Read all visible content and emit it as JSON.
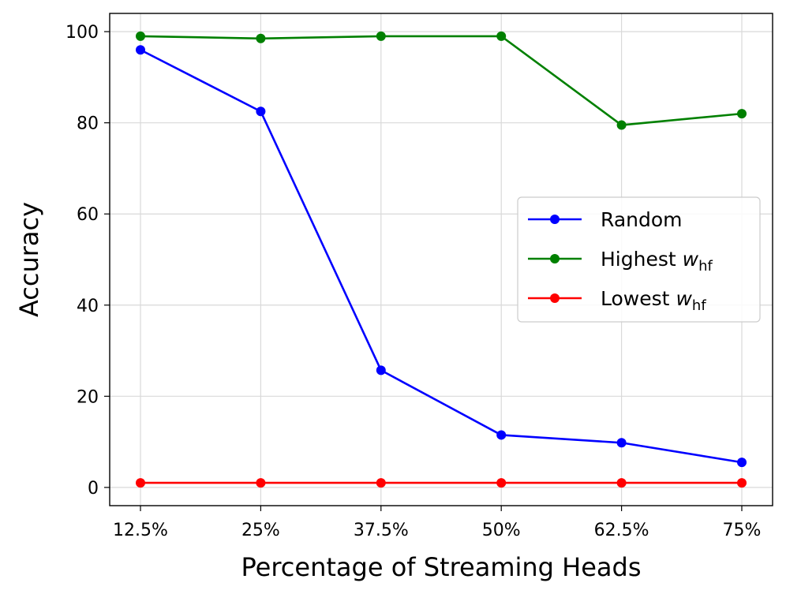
{
  "chart_data": {
    "type": "line",
    "title": "",
    "xlabel": "Percentage of Streaming Heads",
    "ylabel": "Accuracy",
    "categories": [
      "12.5%",
      "25%",
      "37.5%",
      "50%",
      "62.5%",
      "75%"
    ],
    "ylim": [
      -4,
      104
    ],
    "yticks": [
      0,
      20,
      40,
      60,
      80,
      100
    ],
    "grid": true,
    "legend_position": "center-right",
    "series": [
      {
        "name": "Random",
        "color": "#0000ff",
        "values": [
          96,
          82.5,
          25.7,
          11.5,
          9.8,
          5.5
        ]
      },
      {
        "name": "Highest",
        "subscript": "hf",
        "var": "w",
        "color": "#008000",
        "values": [
          99,
          98.5,
          99,
          99,
          79.5,
          82
        ]
      },
      {
        "name": "Lowest",
        "subscript": "hf",
        "var": "w",
        "color": "#ff0000",
        "values": [
          1,
          1,
          1,
          1,
          1,
          1
        ]
      }
    ]
  }
}
